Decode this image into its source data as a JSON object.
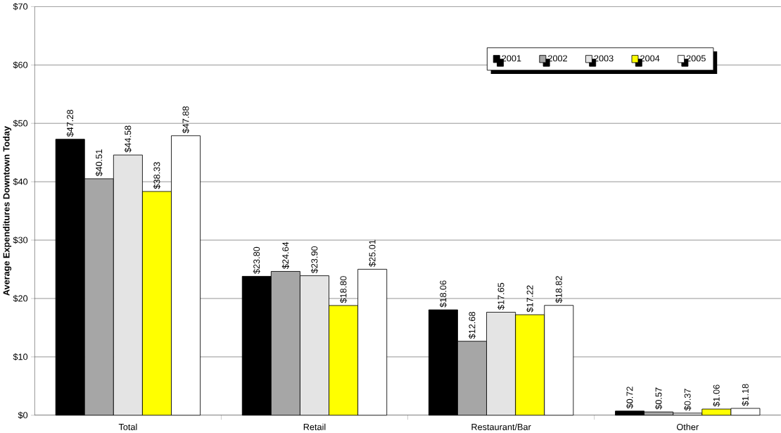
{
  "chart_data": {
    "type": "bar",
    "ylabel": "Average Expenditures Downtown Today",
    "categories": [
      "Total",
      "Retail",
      "Restaurant/Bar",
      "Other"
    ],
    "series": [
      {
        "name": "2001",
        "color": "#000000",
        "values": [
          47.28,
          23.8,
          18.06,
          0.72
        ],
        "value_labels": [
          "$47.28",
          "$23.80",
          "$18.06",
          "$0.72"
        ]
      },
      {
        "name": "2002",
        "color": "#a6a6a6",
        "values": [
          40.51,
          24.64,
          12.68,
          0.57
        ],
        "value_labels": [
          "$40.51",
          "$24.64",
          "$12.68",
          "$0.57"
        ]
      },
      {
        "name": "2003",
        "color": "#e4e4e4",
        "values": [
          44.58,
          23.9,
          17.65,
          0.37
        ],
        "value_labels": [
          "$44.58",
          "$23.90",
          "$17.65",
          "$0.37"
        ]
      },
      {
        "name": "2004",
        "color": "#ffff00",
        "values": [
          38.33,
          18.8,
          17.22,
          1.06
        ],
        "value_labels": [
          "$38.33",
          "$18.80",
          "$17.22",
          "$1.06"
        ]
      },
      {
        "name": "2005",
        "color": "#ffffff",
        "values": [
          47.88,
          25.01,
          18.82,
          1.18
        ],
        "value_labels": [
          "$47.88",
          "$25.01",
          "$18.82",
          "$1.18"
        ]
      }
    ],
    "ylim": [
      0,
      70
    ],
    "yticks": [
      {
        "value": 0,
        "label": "$0"
      },
      {
        "value": 10,
        "label": "$10"
      },
      {
        "value": 20,
        "label": "$20"
      },
      {
        "value": 30,
        "label": "$30"
      },
      {
        "value": 40,
        "label": "$40"
      },
      {
        "value": 50,
        "label": "$50"
      },
      {
        "value": 60,
        "label": "$60"
      },
      {
        "value": 70,
        "label": "$70"
      }
    ],
    "grid": "y",
    "legend": "top right"
  }
}
